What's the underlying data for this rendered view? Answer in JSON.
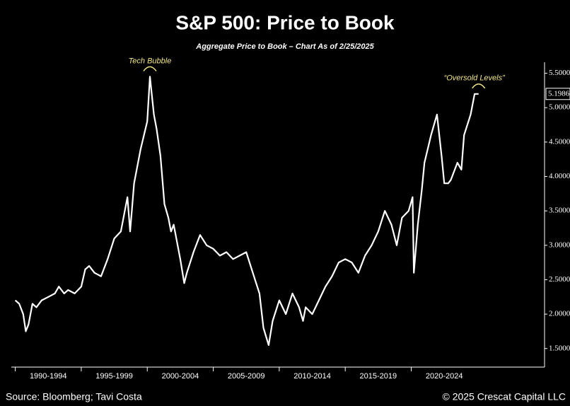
{
  "chart_data": {
    "type": "line",
    "title": "S&P 500: Price to Book",
    "subtitle": "Aggregate Price to Book – Chart As of 2/25/2025",
    "source": "Source: Bloomberg; Tavi Costa",
    "copyright": "© 2025 Crescat Capital LLC",
    "annotations": [
      "Tech Bubble",
      "“Oversold Levels”"
    ],
    "last_value_label": "5.1986",
    "xlim": [
      1989.7,
      2030.1
    ],
    "ylim": [
      1.23,
      5.66
    ],
    "xticks": [
      {
        "value": 1990,
        "label": "1990-1994"
      },
      {
        "value": 1995,
        "label": "1995-1999"
      },
      {
        "value": 2000,
        "label": "2000-2004"
      },
      {
        "value": 2005,
        "label": "2005-2009"
      },
      {
        "value": 2010,
        "label": "2010-2014"
      },
      {
        "value": 2015,
        "label": "2015-2019"
      },
      {
        "value": 2020,
        "label": "2020-2024"
      }
    ],
    "yticks": [
      {
        "value": 1.5,
        "label": "1.5000"
      },
      {
        "value": 2.0,
        "label": "2.0000"
      },
      {
        "value": 2.5,
        "label": "2.5000"
      },
      {
        "value": 3.0,
        "label": "3.0000"
      },
      {
        "value": 3.5,
        "label": "3.5000"
      },
      {
        "value": 4.0,
        "label": "4.0000"
      },
      {
        "value": 4.5,
        "label": "4.5000"
      },
      {
        "value": 5.0,
        "label": "5.0000"
      },
      {
        "value": 5.5,
        "label": "5.5000"
      }
    ],
    "series": [
      {
        "name": "Price to Book",
        "color": "#ffffff",
        "x": [
          1990.0,
          1990.3,
          1990.6,
          1990.8,
          1991.0,
          1991.3,
          1991.6,
          1992.0,
          1992.5,
          1993.0,
          1993.3,
          1993.7,
          1994.0,
          1994.5,
          1995.0,
          1995.3,
          1995.6,
          1996.0,
          1996.5,
          1997.0,
          1997.5,
          1998.0,
          1998.5,
          1998.7,
          1999.0,
          1999.5,
          2000.0,
          2000.2,
          2000.5,
          2000.7,
          2001.0,
          2001.3,
          2001.6,
          2001.8,
          2002.0,
          2002.5,
          2002.8,
          2003.0,
          2003.5,
          2004.0,
          2004.5,
          2005.0,
          2005.5,
          2006.0,
          2006.5,
          2007.0,
          2007.5,
          2008.0,
          2008.5,
          2008.8,
          2009.2,
          2009.5,
          2010.0,
          2010.5,
          2011.0,
          2011.5,
          2011.8,
          2012.0,
          2012.5,
          2013.0,
          2013.5,
          2014.0,
          2014.5,
          2015.0,
          2015.5,
          2016.0,
          2016.5,
          2017.0,
          2017.5,
          2018.0,
          2018.5,
          2018.9,
          2019.3,
          2019.8,
          2020.1,
          2020.2,
          2020.5,
          2020.8,
          2021.0,
          2021.5,
          2021.95,
          2022.3,
          2022.5,
          2022.8,
          2023.0,
          2023.5,
          2023.8,
          2024.0,
          2024.5,
          2024.8,
          2025.1
        ],
        "values": [
          2.2,
          2.15,
          2.0,
          1.75,
          1.85,
          2.15,
          2.1,
          2.2,
          2.25,
          2.3,
          2.4,
          2.3,
          2.35,
          2.3,
          2.4,
          2.65,
          2.7,
          2.6,
          2.55,
          2.8,
          3.1,
          3.2,
          3.7,
          3.2,
          3.9,
          4.4,
          4.8,
          5.45,
          4.9,
          4.7,
          4.3,
          3.6,
          3.4,
          3.2,
          3.3,
          2.8,
          2.45,
          2.6,
          2.9,
          3.15,
          3.0,
          2.95,
          2.85,
          2.9,
          2.8,
          2.85,
          2.9,
          2.6,
          2.3,
          1.8,
          1.55,
          1.9,
          2.2,
          2.0,
          2.3,
          2.1,
          1.9,
          2.1,
          2.0,
          2.2,
          2.4,
          2.55,
          2.75,
          2.8,
          2.75,
          2.6,
          2.85,
          3.0,
          3.2,
          3.5,
          3.3,
          3.0,
          3.4,
          3.5,
          3.7,
          2.6,
          3.3,
          3.8,
          4.2,
          4.6,
          4.9,
          4.3,
          3.9,
          3.9,
          3.95,
          4.2,
          4.1,
          4.6,
          4.9,
          5.2,
          5.2
        ]
      }
    ]
  }
}
